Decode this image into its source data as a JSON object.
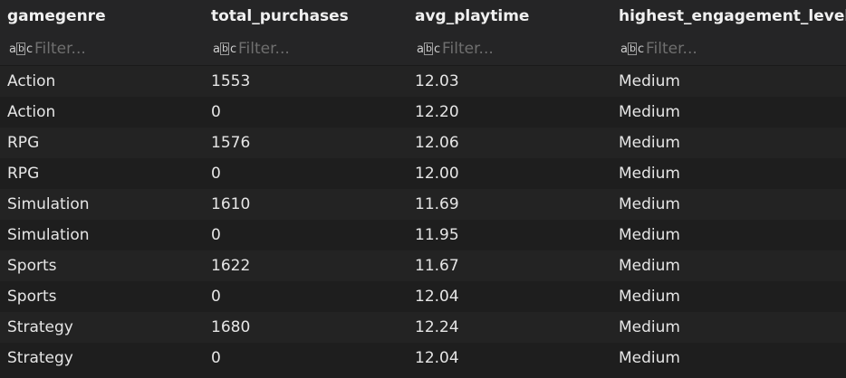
{
  "table": {
    "columns": [
      "gamegenre",
      "total_purchases",
      "avg_playtime",
      "highest_engagement_level"
    ],
    "filter_placeholder": "Filter...",
    "filter_icon": "abc-icon",
    "rows": [
      [
        "Action",
        "1553",
        "12.03",
        "Medium"
      ],
      [
        "Action",
        "0",
        "12.20",
        "Medium"
      ],
      [
        "RPG",
        "1576",
        "12.06",
        "Medium"
      ],
      [
        "RPG",
        "0",
        "12.00",
        "Medium"
      ],
      [
        "Simulation",
        "1610",
        "11.69",
        "Medium"
      ],
      [
        "Simulation",
        "0",
        "11.95",
        "Medium"
      ],
      [
        "Sports",
        "1622",
        "11.67",
        "Medium"
      ],
      [
        "Sports",
        "0",
        "12.04",
        "Medium"
      ],
      [
        "Strategy",
        "1680",
        "12.24",
        "Medium"
      ],
      [
        "Strategy",
        "0",
        "12.04",
        "Medium"
      ]
    ]
  }
}
